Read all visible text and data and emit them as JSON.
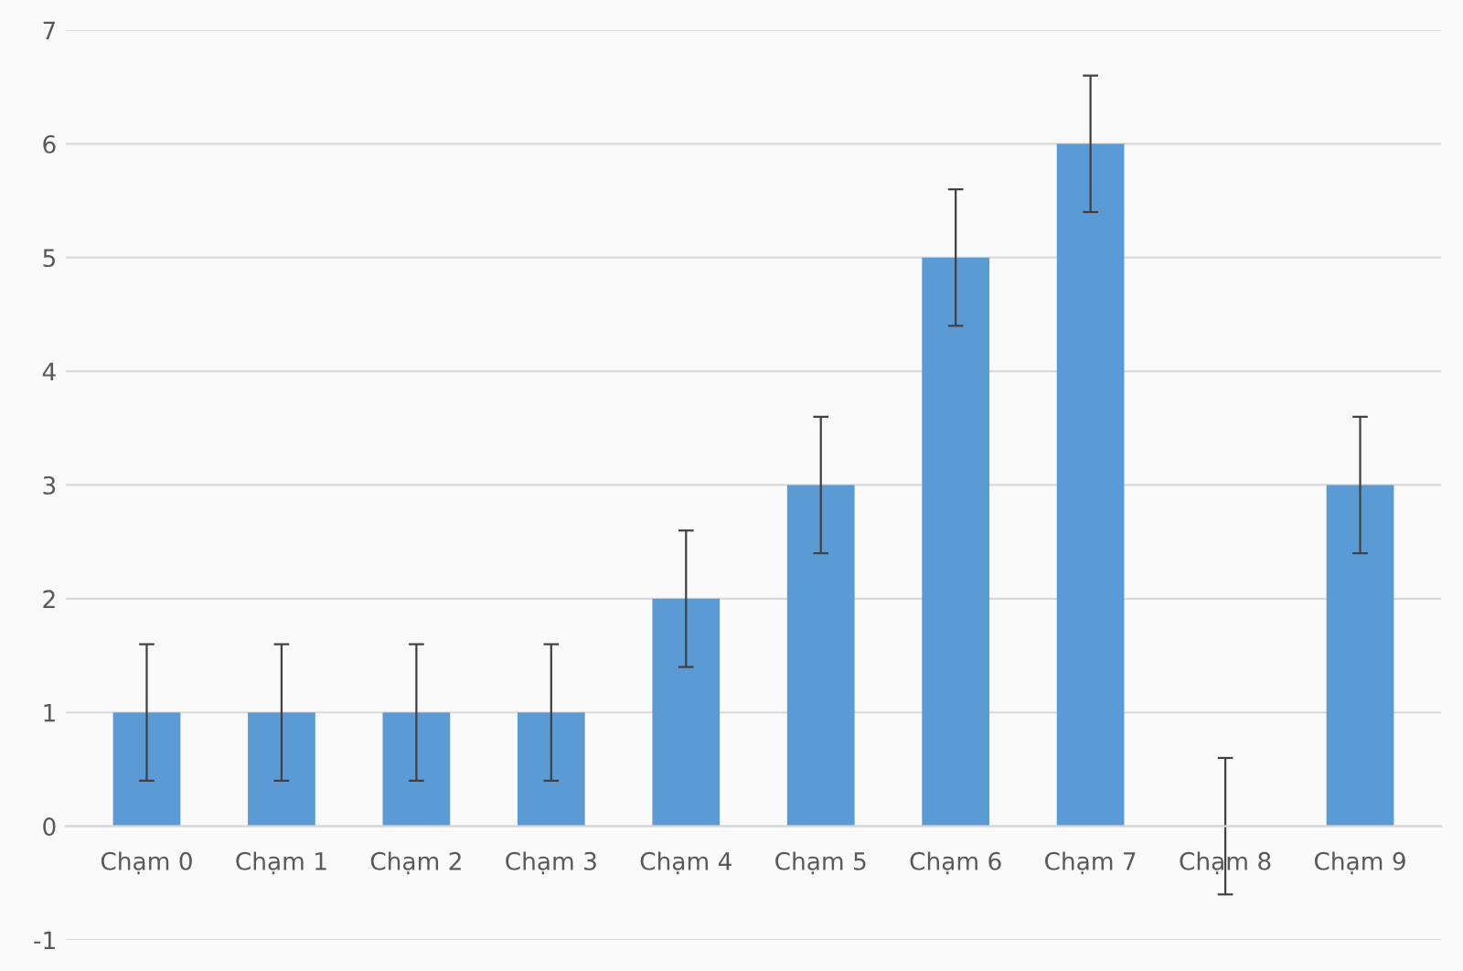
{
  "chart_data": {
    "type": "bar",
    "categories": [
      "Chạm 0",
      "Chạm 1",
      "Chạm 2",
      "Chạm 3",
      "Chạm 4",
      "Chạm 5",
      "Chạm 6",
      "Chạm 7",
      "Chạm 8",
      "Chạm 9"
    ],
    "values": [
      1,
      1,
      1,
      1,
      2,
      3,
      5,
      6,
      0,
      3
    ],
    "errors": [
      0.6,
      0.6,
      0.6,
      0.6,
      0.6,
      0.6,
      0.6,
      0.6,
      0.6,
      0.6
    ],
    "color": "#5b9bd5",
    "ylim": [
      -1,
      7
    ],
    "yticks": [
      -1,
      0,
      1,
      2,
      3,
      4,
      5,
      6,
      7
    ],
    "grid": "y",
    "legend": false
  }
}
